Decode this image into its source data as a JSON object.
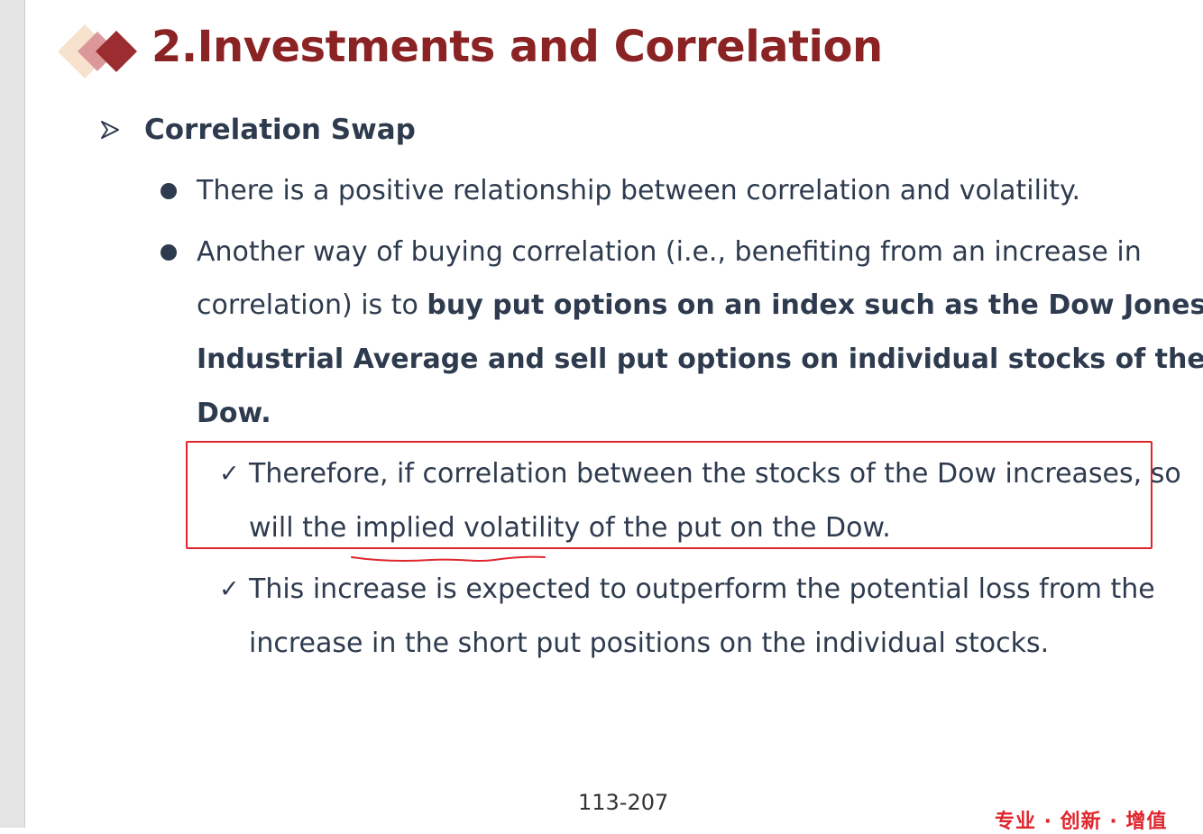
{
  "slide": {
    "title": "2.Investments and Correlation",
    "section": "Correlation Swap",
    "bullets": [
      {
        "lines": [
          {
            "text": "There is a positive relationship between correlation and volatility."
          }
        ]
      },
      {
        "lines": [
          {
            "text": "Another way of buying correlation (i.e., benefiting from an increase in"
          },
          {
            "plain": "correlation) is to ",
            "bold": "buy put options on an index such as the Dow Jones"
          },
          {
            "bold": "Industrial Average and sell put options on individual stocks of the"
          },
          {
            "bold": "Dow."
          }
        ]
      }
    ],
    "subpoints": [
      {
        "mark": "✓",
        "lines": [
          "Therefore, if correlation between the stocks of the Dow increases, so",
          "will the implied volatility of the put on the Dow."
        ]
      },
      {
        "mark": "✓",
        "lines": [
          "This increase is expected to outperform the potential loss from the",
          "increase in the short put positions on the individual stocks."
        ]
      }
    ]
  },
  "footer": {
    "page_number": "113-207",
    "watermark": "专业 · 创新 · 增值"
  },
  "colors": {
    "title": "#8b2325",
    "text": "#2e3b4e",
    "annotation": "#e0262d",
    "logo_light": "#f5dfc8",
    "logo_mid": "#d98f93",
    "logo_dark": "#9b2c30"
  },
  "icons": {
    "logo": "diamond-logo-icon",
    "section": "arrowhead-icon",
    "bullet": "filled-circle",
    "subpoint": "check-mark-icon"
  }
}
